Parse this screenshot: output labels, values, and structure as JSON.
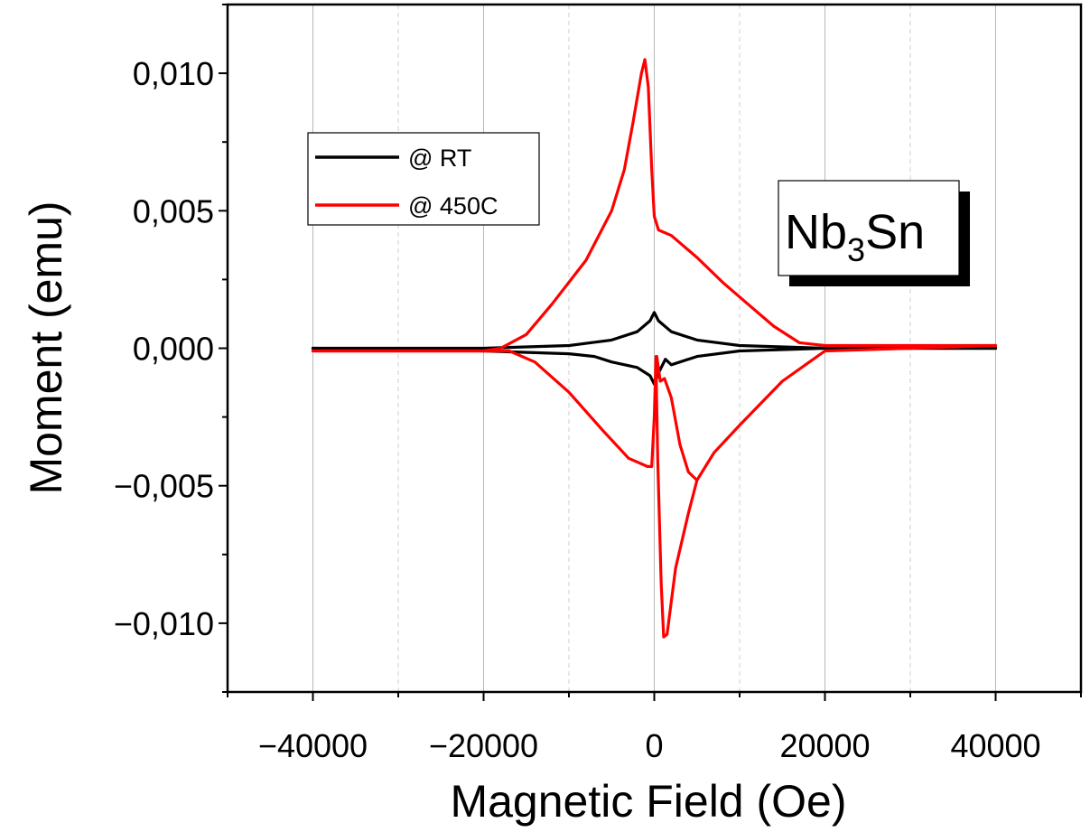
{
  "chart_data": {
    "type": "line",
    "xlabel": "Magnetic Field (Oe)",
    "ylabel": "Moment (emu)",
    "xlim": [
      -50000,
      50000
    ],
    "ylim": [
      -0.0125,
      0.0125
    ],
    "x_ticks": [
      -40000,
      -20000,
      0,
      20000,
      40000
    ],
    "x_tick_labels": [
      "−40000",
      "−20000",
      "0",
      "20000",
      "40000"
    ],
    "y_ticks": [
      -0.01,
      -0.005,
      0.0,
      0.005,
      0.01
    ],
    "y_tick_labels": [
      "−0,010",
      "−0,005",
      "0,000",
      "0,005",
      "0,010"
    ],
    "grid": "vertical",
    "legend_position": "top-left",
    "annotation": {
      "main": "Nb",
      "sub": "3",
      "tail": "Sn"
    },
    "series": [
      {
        "name": "@ RT",
        "color": "#000000",
        "segments": [
          [
            [
              -40000,
              0.0
            ],
            [
              -20000,
              0.0
            ],
            [
              -10000,
              0.0001
            ],
            [
              -5000,
              0.0003
            ],
            [
              -2000,
              0.0006
            ],
            [
              -500,
              0.001
            ],
            [
              0,
              0.0013
            ],
            [
              500,
              0.001
            ],
            [
              2000,
              0.0006
            ],
            [
              5000,
              0.0003
            ],
            [
              10000,
              0.0001
            ],
            [
              20000,
              0.0
            ],
            [
              40000,
              0.0
            ]
          ],
          [
            [
              40000,
              0.0
            ],
            [
              20000,
              0.0
            ],
            [
              10000,
              -0.0001
            ],
            [
              5000,
              -0.0003
            ],
            [
              2000,
              -0.0006
            ],
            [
              1300,
              -0.0004
            ],
            [
              500,
              -0.0009
            ],
            [
              0,
              -0.0013
            ],
            [
              -500,
              -0.001
            ],
            [
              -2000,
              -0.0007
            ],
            [
              -5000,
              -0.0005
            ],
            [
              -7000,
              -0.0003
            ],
            [
              -10000,
              -0.0002
            ],
            [
              -20000,
              -0.0001
            ],
            [
              -40000,
              0.0
            ]
          ]
        ]
      },
      {
        "name": "@ 450C",
        "color": "#ff0000",
        "segments": [
          [
            [
              -40000,
              -0.0001
            ],
            [
              -30000,
              -0.0001
            ],
            [
              -20000,
              -0.0001
            ],
            [
              -18000,
              0.0
            ],
            [
              -15000,
              0.0005
            ],
            [
              -12000,
              0.0016
            ],
            [
              -8000,
              0.0032
            ],
            [
              -5000,
              0.005
            ],
            [
              -3500,
              0.0065
            ],
            [
              -2500,
              0.0082
            ],
            [
              -1500,
              0.01
            ],
            [
              -1100,
              0.0105
            ],
            [
              -700,
              0.0095
            ],
            [
              -300,
              0.0065
            ],
            [
              0,
              0.0048
            ],
            [
              500,
              0.0043
            ],
            [
              2000,
              0.0041
            ],
            [
              5000,
              0.0033
            ],
            [
              8000,
              0.0024
            ],
            [
              11000,
              0.0016
            ],
            [
              14000,
              0.0008
            ],
            [
              17000,
              0.0002
            ],
            [
              20000,
              0.0001
            ],
            [
              30000,
              0.0001
            ],
            [
              40000,
              0.0001
            ]
          ],
          [
            [
              40000,
              0.0001
            ],
            [
              30000,
              0.0
            ],
            [
              20000,
              -0.0001
            ],
            [
              15000,
              -0.0012
            ],
            [
              10000,
              -0.0028
            ],
            [
              7000,
              -0.0038
            ],
            [
              5000,
              -0.0048
            ],
            [
              4000,
              -0.0045
            ],
            [
              3000,
              -0.0035
            ],
            [
              2000,
              -0.0018
            ],
            [
              1200,
              -0.0011
            ],
            [
              700,
              -0.0012
            ],
            [
              300,
              -0.0003
            ],
            [
              200,
              -0.0006
            ],
            [
              400,
              -0.004
            ],
            [
              800,
              -0.0085
            ],
            [
              1100,
              -0.0105
            ],
            [
              1500,
              -0.0104
            ],
            [
              2500,
              -0.008
            ],
            [
              4000,
              -0.006
            ],
            [
              5000,
              -0.0048
            ]
          ],
          [
            [
              200,
              -0.0003
            ],
            [
              0,
              -0.0025
            ],
            [
              -300,
              -0.0043
            ],
            [
              -800,
              -0.0043
            ],
            [
              -3000,
              -0.004
            ],
            [
              -6000,
              -0.003
            ],
            [
              -10000,
              -0.0016
            ],
            [
              -14000,
              -0.0005
            ],
            [
              -17000,
              -0.0001
            ],
            [
              -20000,
              -0.0001
            ],
            [
              -40000,
              -0.0001
            ]
          ]
        ]
      }
    ]
  }
}
